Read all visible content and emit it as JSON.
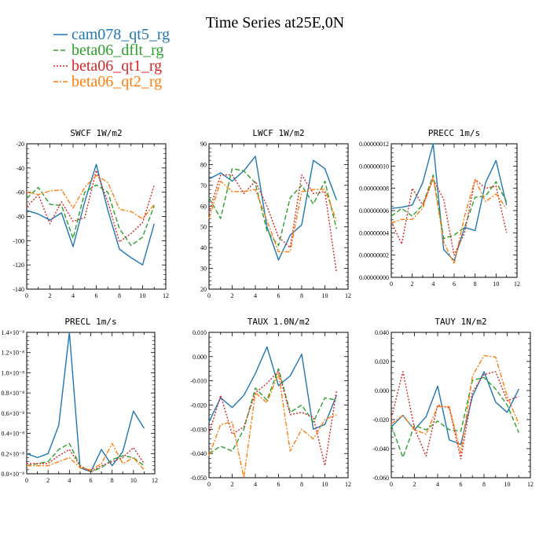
{
  "figure_title": "Time Series at25E,0N",
  "legend": [
    {
      "label": "cam078_qt5_rg",
      "color": "#1f77b4",
      "dash": ""
    },
    {
      "label": "beta06_dflt_rg",
      "color": "#2ca02c",
      "dash": "6,3"
    },
    {
      "label": "beta06_qt1_rg",
      "color": "#d62728",
      "dash": "2,2"
    },
    {
      "label": "beta06_qt2_rg",
      "color": "#ff7f0e",
      "dash": "6,2,2,2"
    }
  ],
  "chart_data": [
    {
      "type": "line",
      "title": "SWCF   1W/m2",
      "xlim": [
        0,
        12
      ],
      "xticks": [
        0,
        2,
        4,
        6,
        8,
        10,
        12
      ],
      "ylim": [
        -140,
        -20
      ],
      "yticks": [
        -140,
        -120,
        -100,
        -80,
        -60,
        -40,
        -20
      ],
      "yticklabels": [
        "-140",
        "-120",
        "-100",
        "-80",
        "-60",
        "-40",
        "-20"
      ],
      "x": [
        0,
        1,
        2,
        3,
        4,
        5,
        6,
        7,
        8,
        9,
        10,
        11
      ],
      "series": [
        {
          "name": "cam078_qt5_rg",
          "values": [
            -75,
            -78,
            -83,
            -77,
            -105,
            -68,
            -37,
            -75,
            -107,
            -114,
            -120,
            -86
          ]
        },
        {
          "name": "beta06_dflt_rg",
          "values": [
            -65,
            -56,
            -70,
            -71,
            -98,
            -60,
            -54,
            -60,
            -90,
            -104,
            -97,
            -71
          ]
        },
        {
          "name": "beta06_qt1_rg",
          "values": [
            -72,
            -62,
            -86,
            -68,
            -84,
            -81,
            -42,
            -68,
            -101,
            -94,
            -85,
            -54
          ]
        },
        {
          "name": "beta06_qt2_rg",
          "values": [
            -60,
            -62,
            -59,
            -58,
            -73,
            -56,
            -46,
            -52,
            -74,
            -76,
            -82,
            -70
          ]
        }
      ]
    },
    {
      "type": "line",
      "title": "LWCF   1W/m2",
      "xlim": [
        0,
        12
      ],
      "xticks": [
        0,
        2,
        4,
        6,
        8,
        10,
        12
      ],
      "ylim": [
        20,
        90
      ],
      "yticks": [
        20,
        30,
        40,
        50,
        60,
        70,
        80,
        90
      ],
      "yticklabels": [
        "20",
        "30",
        "40",
        "50",
        "60",
        "70",
        "80",
        "90"
      ],
      "x": [
        0,
        1,
        2,
        3,
        4,
        5,
        6,
        7,
        8,
        9,
        10,
        11
      ],
      "series": [
        {
          "name": "cam078_qt5_rg",
          "values": [
            73,
            76,
            72,
            77,
            84,
            50,
            34,
            46,
            51,
            82,
            78,
            63
          ]
        },
        {
          "name": "beta06_dflt_rg",
          "values": [
            64,
            54,
            78,
            77,
            71,
            48,
            41,
            64,
            70,
            61,
            72,
            49
          ]
        },
        {
          "name": "beta06_qt1_rg",
          "values": [
            57,
            75,
            75,
            66,
            72,
            60,
            45,
            40,
            75,
            66,
            67,
            28
          ]
        },
        {
          "name": "beta06_qt2_rg",
          "values": [
            54,
            72,
            67,
            67,
            68,
            53,
            38,
            38,
            67,
            68,
            68,
            53
          ]
        }
      ]
    },
    {
      "type": "line",
      "title": "PRECC   1m/s",
      "xlim": [
        0,
        12
      ],
      "xticks": [
        0,
        2,
        4,
        6,
        8,
        10,
        12
      ],
      "ylim": [
        0,
        1.2e-07
      ],
      "yticks": [
        0,
        2e-08,
        4e-08,
        6e-08,
        8e-08,
        1e-07,
        1.2e-07
      ],
      "yticklabels": [
        "0.00000000",
        "0.00000002",
        "0.00000004",
        "0.00000006",
        "0.00000008",
        "0.00000010",
        "0.00000012"
      ],
      "x": [
        0,
        1,
        2,
        3,
        4,
        5,
        6,
        7,
        8,
        9,
        10,
        11
      ],
      "series": [
        {
          "name": "cam078_qt5_rg",
          "values": [
            6.2e-08,
            6.3e-08,
            6.5e-08,
            8.5e-08,
            1.2e-07,
            2.5e-08,
            1.5e-08,
            4.5e-08,
            4.2e-08,
            8.5e-08,
            1.05e-07,
            6.5e-08
          ]
        },
        {
          "name": "beta06_dflt_rg",
          "values": [
            5.5e-08,
            6.2e-08,
            5.5e-08,
            6.5e-08,
            9.2e-08,
            3.5e-08,
            3.8e-08,
            4.5e-08,
            7.2e-08,
            7.3e-08,
            8.6e-08,
            6.8e-08
          ]
        },
        {
          "name": "beta06_qt1_rg",
          "values": [
            5e-08,
            3e-08,
            8e-08,
            6.5e-08,
            8.8e-08,
            7e-08,
            2e-08,
            4e-08,
            8.8e-08,
            8e-08,
            8.2e-08,
            4e-08
          ]
        },
        {
          "name": "beta06_qt2_rg",
          "values": [
            4.9e-08,
            5.2e-08,
            5.2e-08,
            6.2e-08,
            9e-08,
            3.2e-08,
            1.2e-08,
            5.5e-08,
            8.8e-08,
            6.8e-08,
            7.5e-08,
            6.2e-08
          ]
        }
      ]
    },
    {
      "type": "line",
      "title": "PRECL   1m/s",
      "xlim": [
        0,
        12
      ],
      "xticks": [
        0,
        2,
        4,
        6,
        8,
        10,
        12
      ],
      "ylim": [
        0,
        1.4e-08
      ],
      "yticks": [
        0,
        2e-09,
        4e-09,
        6e-09,
        8e-09,
        1e-08,
        1.2e-08,
        1.4e-08
      ],
      "yticklabels": [
        "0.0×10⁻⁸",
        "0.2×10⁻⁸",
        "0.4×10⁻⁸",
        "0.6×10⁻⁸",
        "0.8×10⁻⁸",
        "1.0×10⁻⁸",
        "1.2×10⁻⁸",
        "1.4×10⁻⁸"
      ],
      "x": [
        0,
        1,
        2,
        3,
        4,
        5,
        6,
        7,
        8,
        9,
        10,
        11
      ],
      "series": [
        {
          "name": "cam078_qt5_rg",
          "values": [
            2e-09,
            1.6e-09,
            2e-09,
            4.8e-09,
            1.4e-08,
            6e-10,
            2e-10,
            2.4e-09,
            8e-10,
            2.2e-09,
            6.2e-09,
            4.5e-09
          ]
        },
        {
          "name": "beta06_dflt_rg",
          "values": [
            8e-10,
            1e-09,
            1.2e-09,
            2.4e-09,
            3e-09,
            8e-10,
            2e-10,
            6e-10,
            1.4e-09,
            1.8e-09,
            1.6e-09,
            8e-10
          ]
        },
        {
          "name": "beta06_qt1_rg",
          "values": [
            1e-09,
            1e-09,
            1e-09,
            1.8e-09,
            2.4e-09,
            8e-10,
            2e-10,
            8e-10,
            1.2e-09,
            1.6e-09,
            2.6e-09,
            1e-09
          ]
        },
        {
          "name": "beta06_qt2_rg",
          "values": [
            8e-10,
            8e-10,
            8e-10,
            1.2e-09,
            1.6e-09,
            6e-10,
            4e-10,
            1e-09,
            3e-09,
            1e-09,
            1.6e-09,
            4e-10
          ]
        }
      ]
    },
    {
      "type": "line",
      "title": "TAUX   1.0N/m2",
      "xlim": [
        0,
        12
      ],
      "xticks": [
        0,
        2,
        4,
        6,
        8,
        10,
        12
      ],
      "ylim": [
        -0.05,
        0.01
      ],
      "yticks": [
        -0.05,
        -0.04,
        -0.03,
        -0.02,
        -0.01,
        0.0,
        0.01
      ],
      "yticklabels": [
        "-0.050",
        "-0.040",
        "-0.030",
        "-0.020",
        "-0.010",
        "0.000",
        "0.010"
      ],
      "x": [
        0,
        1,
        2,
        3,
        4,
        5,
        6,
        7,
        8,
        9,
        10,
        11
      ],
      "series": [
        {
          "name": "cam078_qt5_rg",
          "values": [
            -0.027,
            -0.017,
            -0.021,
            -0.016,
            -0.007,
            0.004,
            -0.012,
            -0.008,
            0.001,
            -0.03,
            -0.028,
            -0.016
          ]
        },
        {
          "name": "beta06_dflt_rg",
          "values": [
            -0.04,
            -0.037,
            -0.039,
            -0.03,
            -0.013,
            -0.018,
            -0.005,
            -0.023,
            -0.02,
            -0.027,
            -0.017,
            -0.018
          ]
        },
        {
          "name": "beta06_qt1_rg",
          "values": [
            -0.032,
            -0.016,
            -0.032,
            -0.029,
            -0.015,
            -0.011,
            -0.006,
            -0.024,
            -0.023,
            -0.025,
            -0.045,
            -0.014
          ]
        },
        {
          "name": "beta06_qt2_rg",
          "values": [
            -0.041,
            -0.028,
            -0.027,
            -0.05,
            -0.015,
            -0.019,
            -0.007,
            -0.039,
            -0.03,
            -0.034,
            -0.026,
            -0.024
          ]
        }
      ]
    },
    {
      "type": "line",
      "title": "TAUY   1N/m2",
      "xlim": [
        0,
        12
      ],
      "xticks": [
        0,
        2,
        4,
        6,
        8,
        10,
        12
      ],
      "ylim": [
        -0.06,
        0.04
      ],
      "yticks": [
        -0.06,
        -0.04,
        -0.02,
        0.0,
        0.02,
        0.04
      ],
      "yticklabels": [
        "-0.060",
        "-0.040",
        "-0.020",
        "0.000",
        "0.020",
        "0.040"
      ],
      "x": [
        0,
        1,
        2,
        3,
        4,
        5,
        6,
        7,
        8,
        9,
        10,
        11
      ],
      "series": [
        {
          "name": "cam078_qt5_rg",
          "values": [
            -0.025,
            -0.017,
            -0.027,
            -0.018,
            0.003,
            -0.034,
            -0.037,
            -0.004,
            0.013,
            -0.008,
            -0.015,
            0.001
          ]
        },
        {
          "name": "beta06_dflt_rg",
          "values": [
            -0.024,
            -0.046,
            -0.024,
            -0.027,
            -0.021,
            -0.027,
            -0.028,
            0.007,
            0.009,
            0.001,
            -0.01,
            -0.029
          ]
        },
        {
          "name": "beta06_qt1_rg",
          "values": [
            -0.019,
            0.013,
            -0.026,
            -0.045,
            -0.01,
            -0.012,
            -0.047,
            -0.001,
            0.011,
            0.013,
            -0.007,
            -0.004
          ]
        },
        {
          "name": "beta06_qt2_rg",
          "values": [
            -0.023,
            -0.017,
            -0.027,
            -0.03,
            -0.011,
            -0.011,
            -0.043,
            0.01,
            0.024,
            0.023,
            -0.004,
            -0.023
          ]
        }
      ]
    }
  ]
}
